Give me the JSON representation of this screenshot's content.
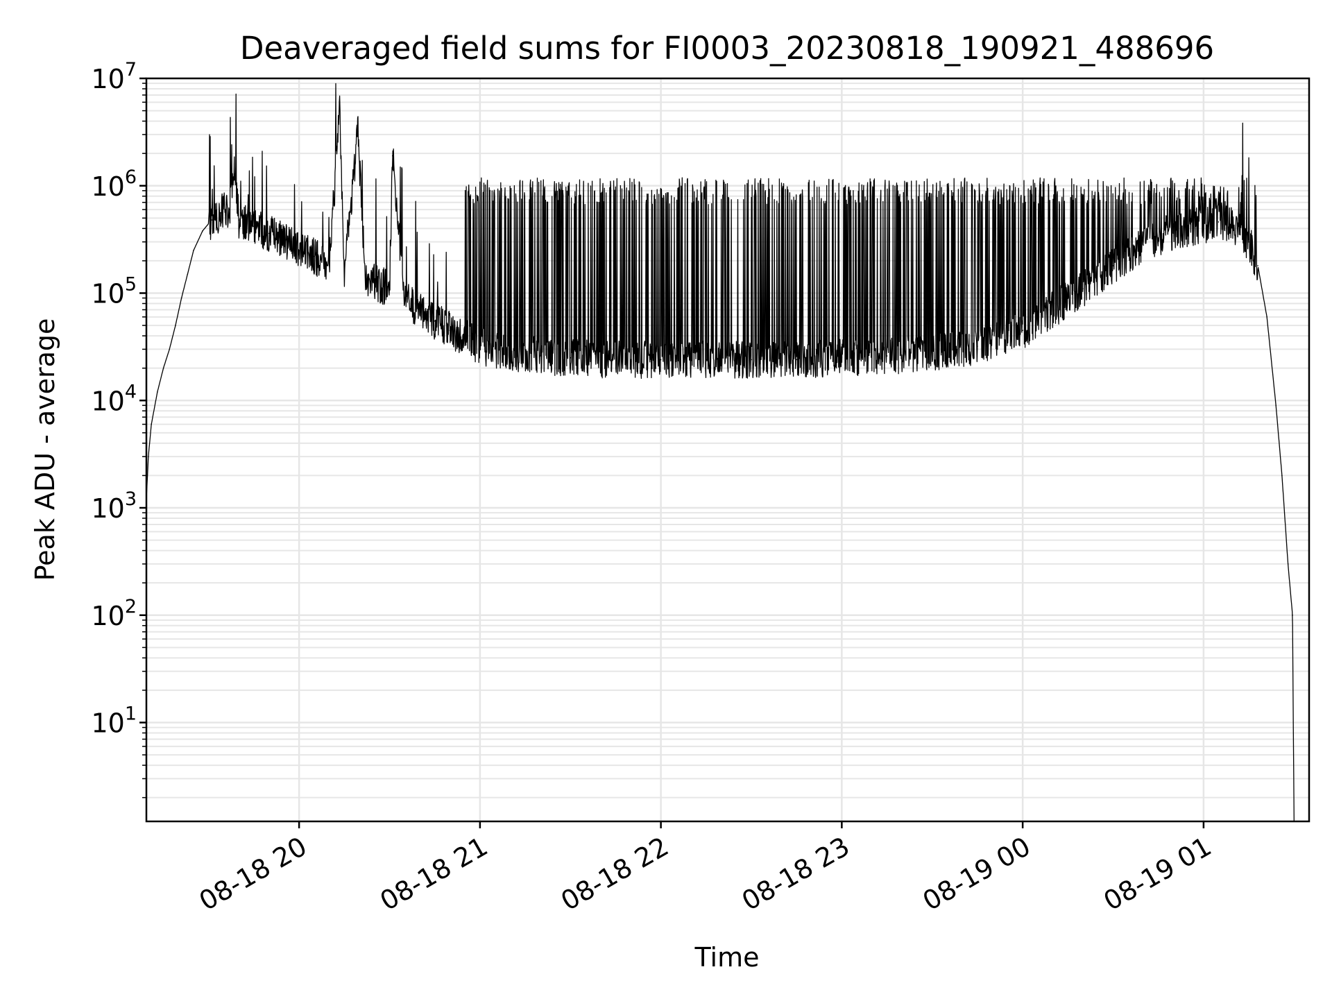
{
  "chart_data": {
    "type": "line",
    "title": "Deaveraged field sums for FI0003_20230818_190921_488696",
    "xlabel": "Time",
    "ylabel": "Peak ADU - average",
    "yscale": "log",
    "ylim": [
      1.2,
      10000000
    ],
    "xlim": [
      "2023-08-18 19:09:21",
      "2023-08-19 01:35:00"
    ],
    "grid": true,
    "line_color": "#000000",
    "grid_color": "#e6e6e6",
    "x_ticks": [
      {
        "value": "2023-08-18 20:00",
        "label": "08-18 20"
      },
      {
        "value": "2023-08-18 21:00",
        "label": "08-18 21"
      },
      {
        "value": "2023-08-18 22:00",
        "label": "08-18 22"
      },
      {
        "value": "2023-08-18 23:00",
        "label": "08-18 23"
      },
      {
        "value": "2023-08-19 00:00",
        "label": "08-19 00"
      },
      {
        "value": "2023-08-19 01:00",
        "label": "08-19 01"
      }
    ],
    "y_ticks": [
      {
        "value": 10,
        "base": "10",
        "exp": "1"
      },
      {
        "value": 100,
        "base": "10",
        "exp": "2"
      },
      {
        "value": 1000,
        "base": "10",
        "exp": "3"
      },
      {
        "value": 10000,
        "base": "10",
        "exp": "4"
      },
      {
        "value": 100000,
        "base": "10",
        "exp": "5"
      },
      {
        "value": 1000000,
        "base": "10",
        "exp": "6"
      },
      {
        "value": 10000000,
        "base": "10",
        "exp": "7"
      }
    ],
    "series": [
      {
        "points": [
          [
            "2023-08-18 19:09:21",
            1200
          ],
          [
            "2023-08-18 19:10:00",
            3000
          ],
          [
            "2023-08-18 19:11:00",
            6000
          ],
          [
            "2023-08-18 19:13:00",
            12000
          ],
          [
            "2023-08-18 19:15:00",
            20000
          ],
          [
            "2023-08-18 19:17:00",
            30000
          ],
          [
            "2023-08-18 19:19:00",
            50000
          ],
          [
            "2023-08-18 19:21:00",
            90000
          ],
          [
            "2023-08-18 19:23:00",
            150000
          ],
          [
            "2023-08-18 19:25:00",
            250000
          ],
          [
            "2023-08-18 19:28:00",
            380000
          ],
          [
            "2023-08-18 19:31:00",
            480000
          ],
          [
            "2023-08-18 19:34:00",
            560000
          ],
          [
            "2023-08-18 19:37:00",
            600000
          ],
          [
            "2023-08-18 19:38:30",
            1600000
          ],
          [
            "2023-08-18 19:40:00",
            480000
          ],
          [
            "2023-08-18 19:45:00",
            420000
          ],
          [
            "2023-08-18 19:50:00",
            360000
          ],
          [
            "2023-08-18 19:55:00",
            320000
          ],
          [
            "2023-08-18 20:00:00",
            250000
          ],
          [
            "2023-08-18 20:05:00",
            220000
          ],
          [
            "2023-08-18 20:10:00",
            180000
          ],
          [
            "2023-08-18 20:13:30",
            4900000
          ],
          [
            "2023-08-18 20:15:00",
            160000
          ],
          [
            "2023-08-18 20:19:30",
            3200000
          ],
          [
            "2023-08-18 20:22:00",
            140000
          ],
          [
            "2023-08-18 20:30:00",
            110000
          ],
          [
            "2023-08-18 20:31:00",
            1900000
          ],
          [
            "2023-08-18 20:35:00",
            90000
          ],
          [
            "2023-08-18 20:40:00",
            70000
          ],
          [
            "2023-08-18 20:45:00",
            55000
          ],
          [
            "2023-08-18 20:50:00",
            45000
          ],
          [
            "2023-08-18 20:55:00",
            38000
          ],
          [
            "2023-08-18 21:00:00",
            32000
          ],
          [
            "2023-08-18 21:10:00",
            28000
          ],
          [
            "2023-08-18 21:20:00",
            26000
          ],
          [
            "2023-08-18 21:30:00",
            25000
          ],
          [
            "2023-08-18 21:40:00",
            24000
          ],
          [
            "2023-08-18 21:50:00",
            24000
          ],
          [
            "2023-08-18 22:00:00",
            24000
          ],
          [
            "2023-08-18 22:15:00",
            24000
          ],
          [
            "2023-08-18 22:30:00",
            24000
          ],
          [
            "2023-08-18 22:45:00",
            24000
          ],
          [
            "2023-08-18 23:00:00",
            25000
          ],
          [
            "2023-08-18 23:15:00",
            26000
          ],
          [
            "2023-08-18 23:30:00",
            28000
          ],
          [
            "2023-08-18 23:45:00",
            32000
          ],
          [
            "2023-08-19 00:00:00",
            45000
          ],
          [
            "2023-08-19 00:10:00",
            70000
          ],
          [
            "2023-08-19 00:20:00",
            110000
          ],
          [
            "2023-08-19 00:30:00",
            180000
          ],
          [
            "2023-08-19 00:40:00",
            280000
          ],
          [
            "2023-08-19 00:50:00",
            380000
          ],
          [
            "2023-08-19 01:00:00",
            430000
          ],
          [
            "2023-08-19 01:05:00",
            460000
          ],
          [
            "2023-08-19 01:10:00",
            420000
          ],
          [
            "2023-08-19 01:15:00",
            300000
          ],
          [
            "2023-08-19 01:18:00",
            180000
          ],
          [
            "2023-08-19 01:21:00",
            60000
          ],
          [
            "2023-08-19 01:24:00",
            9000
          ],
          [
            "2023-08-19 01:26:00",
            2000
          ],
          [
            "2023-08-19 01:28:00",
            300
          ],
          [
            "2023-08-19 01:29:30",
            100
          ],
          [
            "2023-08-19 01:30:00",
            1.2
          ]
        ]
      }
    ]
  }
}
